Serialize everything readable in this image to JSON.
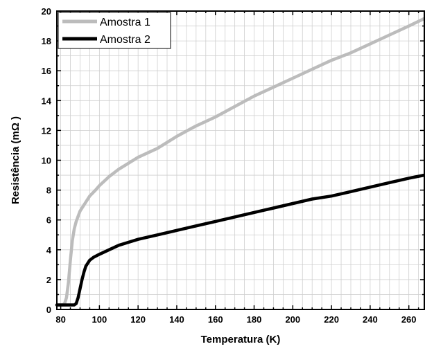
{
  "chart_data": {
    "type": "line",
    "xlabel": "Temperatura (K)",
    "ylabel": "Resistência (mΩ )",
    "xlim": [
      78,
      268
    ],
    "ylim": [
      0,
      20
    ],
    "xticks": [
      80,
      100,
      120,
      140,
      160,
      180,
      200,
      220,
      240,
      260
    ],
    "yticks": [
      0,
      2,
      4,
      6,
      8,
      10,
      12,
      14,
      16,
      18,
      20
    ],
    "grid": true,
    "legend_position": "top-left",
    "series": [
      {
        "name": "Amostra 1",
        "color": "#bcbcbc",
        "x": [
          78,
          80,
          81,
          82,
          83,
          84,
          85,
          86,
          87,
          88,
          90,
          92,
          95,
          98,
          100,
          105,
          110,
          120,
          130,
          140,
          150,
          160,
          170,
          180,
          190,
          200,
          210,
          220,
          230,
          240,
          250,
          260,
          268
        ],
        "y": [
          0.3,
          0.3,
          0.3,
          0.4,
          0.8,
          1.8,
          3.3,
          4.6,
          5.4,
          5.9,
          6.6,
          7.0,
          7.6,
          8.0,
          8.3,
          8.9,
          9.4,
          10.2,
          10.8,
          11.6,
          12.3,
          12.9,
          13.6,
          14.3,
          14.9,
          15.5,
          16.1,
          16.7,
          17.2,
          17.8,
          18.4,
          19.0,
          19.5
        ]
      },
      {
        "name": "Amostra 2",
        "color": "#000000",
        "x": [
          78,
          80,
          84,
          87,
          88,
          89,
          90,
          91,
          92,
          93,
          94,
          95,
          97,
          100,
          105,
          110,
          115,
          120,
          130,
          140,
          150,
          160,
          170,
          180,
          190,
          200,
          210,
          220,
          230,
          240,
          250,
          260,
          268
        ],
        "y": [
          0.3,
          0.3,
          0.3,
          0.3,
          0.4,
          0.8,
          1.4,
          2.0,
          2.5,
          2.9,
          3.1,
          3.3,
          3.5,
          3.7,
          4.0,
          4.3,
          4.5,
          4.7,
          5.0,
          5.3,
          5.6,
          5.9,
          6.2,
          6.5,
          6.8,
          7.1,
          7.4,
          7.6,
          7.9,
          8.2,
          8.5,
          8.8,
          9.0
        ]
      }
    ]
  }
}
